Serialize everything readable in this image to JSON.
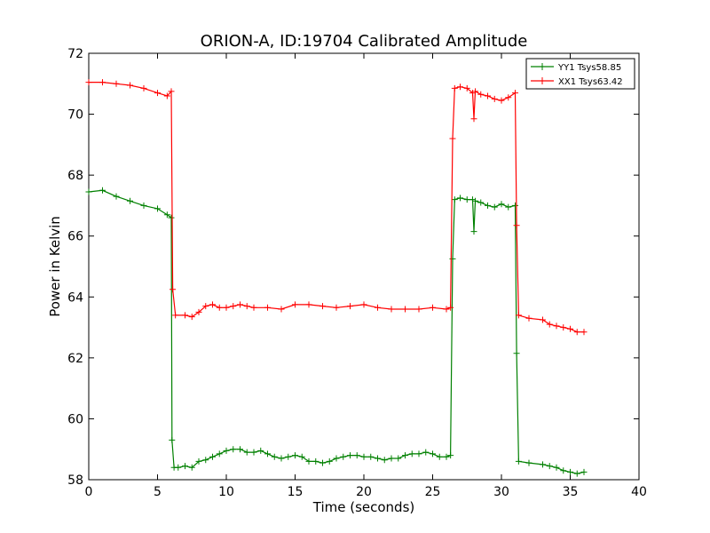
{
  "chart_data": {
    "type": "line",
    "title": "ORION-A, ID:19704 Calibrated Amplitude",
    "xlabel": "Time (seconds)",
    "ylabel": "Power in Kelvin",
    "xlim": [
      0,
      40
    ],
    "ylim": [
      58,
      72
    ],
    "xticks": [
      "0",
      "5",
      "10",
      "15",
      "20",
      "25",
      "30",
      "35",
      "40"
    ],
    "yticks": [
      "58",
      "60",
      "62",
      "64",
      "66",
      "68",
      "70",
      "72"
    ],
    "grid": false,
    "legend_position": "top-right",
    "marker": "+",
    "series": [
      {
        "name": "YY1 Tsys58.85",
        "color": "#008000",
        "points": [
          [
            0.0,
            67.45
          ],
          [
            1.0,
            67.5
          ],
          [
            2.0,
            67.3
          ],
          [
            3.0,
            67.15
          ],
          [
            4.0,
            67.0
          ],
          [
            5.0,
            66.9
          ],
          [
            5.7,
            66.7
          ],
          [
            6.0,
            66.6
          ],
          [
            6.05,
            59.3
          ],
          [
            6.2,
            58.4
          ],
          [
            6.5,
            58.4
          ],
          [
            7.0,
            58.45
          ],
          [
            7.5,
            58.4
          ],
          [
            8.0,
            58.6
          ],
          [
            8.5,
            58.65
          ],
          [
            9.0,
            58.75
          ],
          [
            9.5,
            58.85
          ],
          [
            10.0,
            58.95
          ],
          [
            10.5,
            59.0
          ],
          [
            11.0,
            59.0
          ],
          [
            11.5,
            58.9
          ],
          [
            12.0,
            58.9
          ],
          [
            12.5,
            58.95
          ],
          [
            13.0,
            58.85
          ],
          [
            13.5,
            58.75
          ],
          [
            14.0,
            58.7
          ],
          [
            14.5,
            58.75
          ],
          [
            15.0,
            58.8
          ],
          [
            15.5,
            58.75
          ],
          [
            16.0,
            58.6
          ],
          [
            16.5,
            58.6
          ],
          [
            17.0,
            58.55
          ],
          [
            17.5,
            58.6
          ],
          [
            18.0,
            58.7
          ],
          [
            18.5,
            58.75
          ],
          [
            19.0,
            58.8
          ],
          [
            19.5,
            58.8
          ],
          [
            20.0,
            58.75
          ],
          [
            20.5,
            58.75
          ],
          [
            21.0,
            58.7
          ],
          [
            21.5,
            58.65
          ],
          [
            22.0,
            58.7
          ],
          [
            22.5,
            58.7
          ],
          [
            23.0,
            58.8
          ],
          [
            23.5,
            58.85
          ],
          [
            24.0,
            58.85
          ],
          [
            24.5,
            58.9
          ],
          [
            25.0,
            58.85
          ],
          [
            25.5,
            58.75
          ],
          [
            26.0,
            58.75
          ],
          [
            26.3,
            58.8
          ],
          [
            26.45,
            65.25
          ],
          [
            26.6,
            67.2
          ],
          [
            27.0,
            67.25
          ],
          [
            27.5,
            67.2
          ],
          [
            27.9,
            67.2
          ],
          [
            28.0,
            66.15
          ],
          [
            28.1,
            67.15
          ],
          [
            28.5,
            67.1
          ],
          [
            29.0,
            67.0
          ],
          [
            29.5,
            66.95
          ],
          [
            30.0,
            67.05
          ],
          [
            30.5,
            66.95
          ],
          [
            31.0,
            67.0
          ],
          [
            31.1,
            62.15
          ],
          [
            31.25,
            58.6
          ],
          [
            32.0,
            58.55
          ],
          [
            33.0,
            58.5
          ],
          [
            33.5,
            58.45
          ],
          [
            34.0,
            58.4
          ],
          [
            34.5,
            58.3
          ],
          [
            35.0,
            58.25
          ],
          [
            35.5,
            58.2
          ],
          [
            36.0,
            58.25
          ]
        ]
      },
      {
        "name": "XX1 Tsys63.42",
        "color": "#ff0000",
        "points": [
          [
            0.0,
            71.05
          ],
          [
            1.0,
            71.05
          ],
          [
            2.0,
            71.0
          ],
          [
            3.0,
            70.95
          ],
          [
            4.0,
            70.85
          ],
          [
            5.0,
            70.7
          ],
          [
            5.7,
            70.6
          ],
          [
            6.0,
            70.75
          ],
          [
            6.1,
            64.25
          ],
          [
            6.3,
            63.4
          ],
          [
            7.0,
            63.4
          ],
          [
            7.5,
            63.35
          ],
          [
            8.0,
            63.5
          ],
          [
            8.5,
            63.7
          ],
          [
            9.0,
            63.75
          ],
          [
            9.5,
            63.65
          ],
          [
            10.0,
            63.65
          ],
          [
            10.5,
            63.7
          ],
          [
            11.0,
            63.75
          ],
          [
            11.5,
            63.7
          ],
          [
            12.0,
            63.65
          ],
          [
            13.0,
            63.65
          ],
          [
            14.0,
            63.6
          ],
          [
            15.0,
            63.75
          ],
          [
            16.0,
            63.75
          ],
          [
            17.0,
            63.7
          ],
          [
            18.0,
            63.65
          ],
          [
            19.0,
            63.7
          ],
          [
            20.0,
            63.75
          ],
          [
            21.0,
            63.65
          ],
          [
            22.0,
            63.6
          ],
          [
            23.0,
            63.6
          ],
          [
            24.0,
            63.6
          ],
          [
            25.0,
            63.65
          ],
          [
            26.0,
            63.6
          ],
          [
            26.3,
            63.65
          ],
          [
            26.45,
            69.2
          ],
          [
            26.6,
            70.85
          ],
          [
            27.0,
            70.9
          ],
          [
            27.5,
            70.85
          ],
          [
            27.9,
            70.7
          ],
          [
            28.0,
            69.85
          ],
          [
            28.1,
            70.75
          ],
          [
            28.5,
            70.65
          ],
          [
            29.0,
            70.6
          ],
          [
            29.5,
            70.5
          ],
          [
            30.0,
            70.45
          ],
          [
            30.5,
            70.55
          ],
          [
            31.0,
            70.7
          ],
          [
            31.1,
            66.35
          ],
          [
            31.25,
            63.4
          ],
          [
            32.0,
            63.3
          ],
          [
            33.0,
            63.25
          ],
          [
            33.5,
            63.1
          ],
          [
            34.0,
            63.05
          ],
          [
            34.5,
            63.0
          ],
          [
            35.0,
            62.95
          ],
          [
            35.5,
            62.85
          ],
          [
            36.0,
            62.85
          ]
        ]
      }
    ]
  }
}
